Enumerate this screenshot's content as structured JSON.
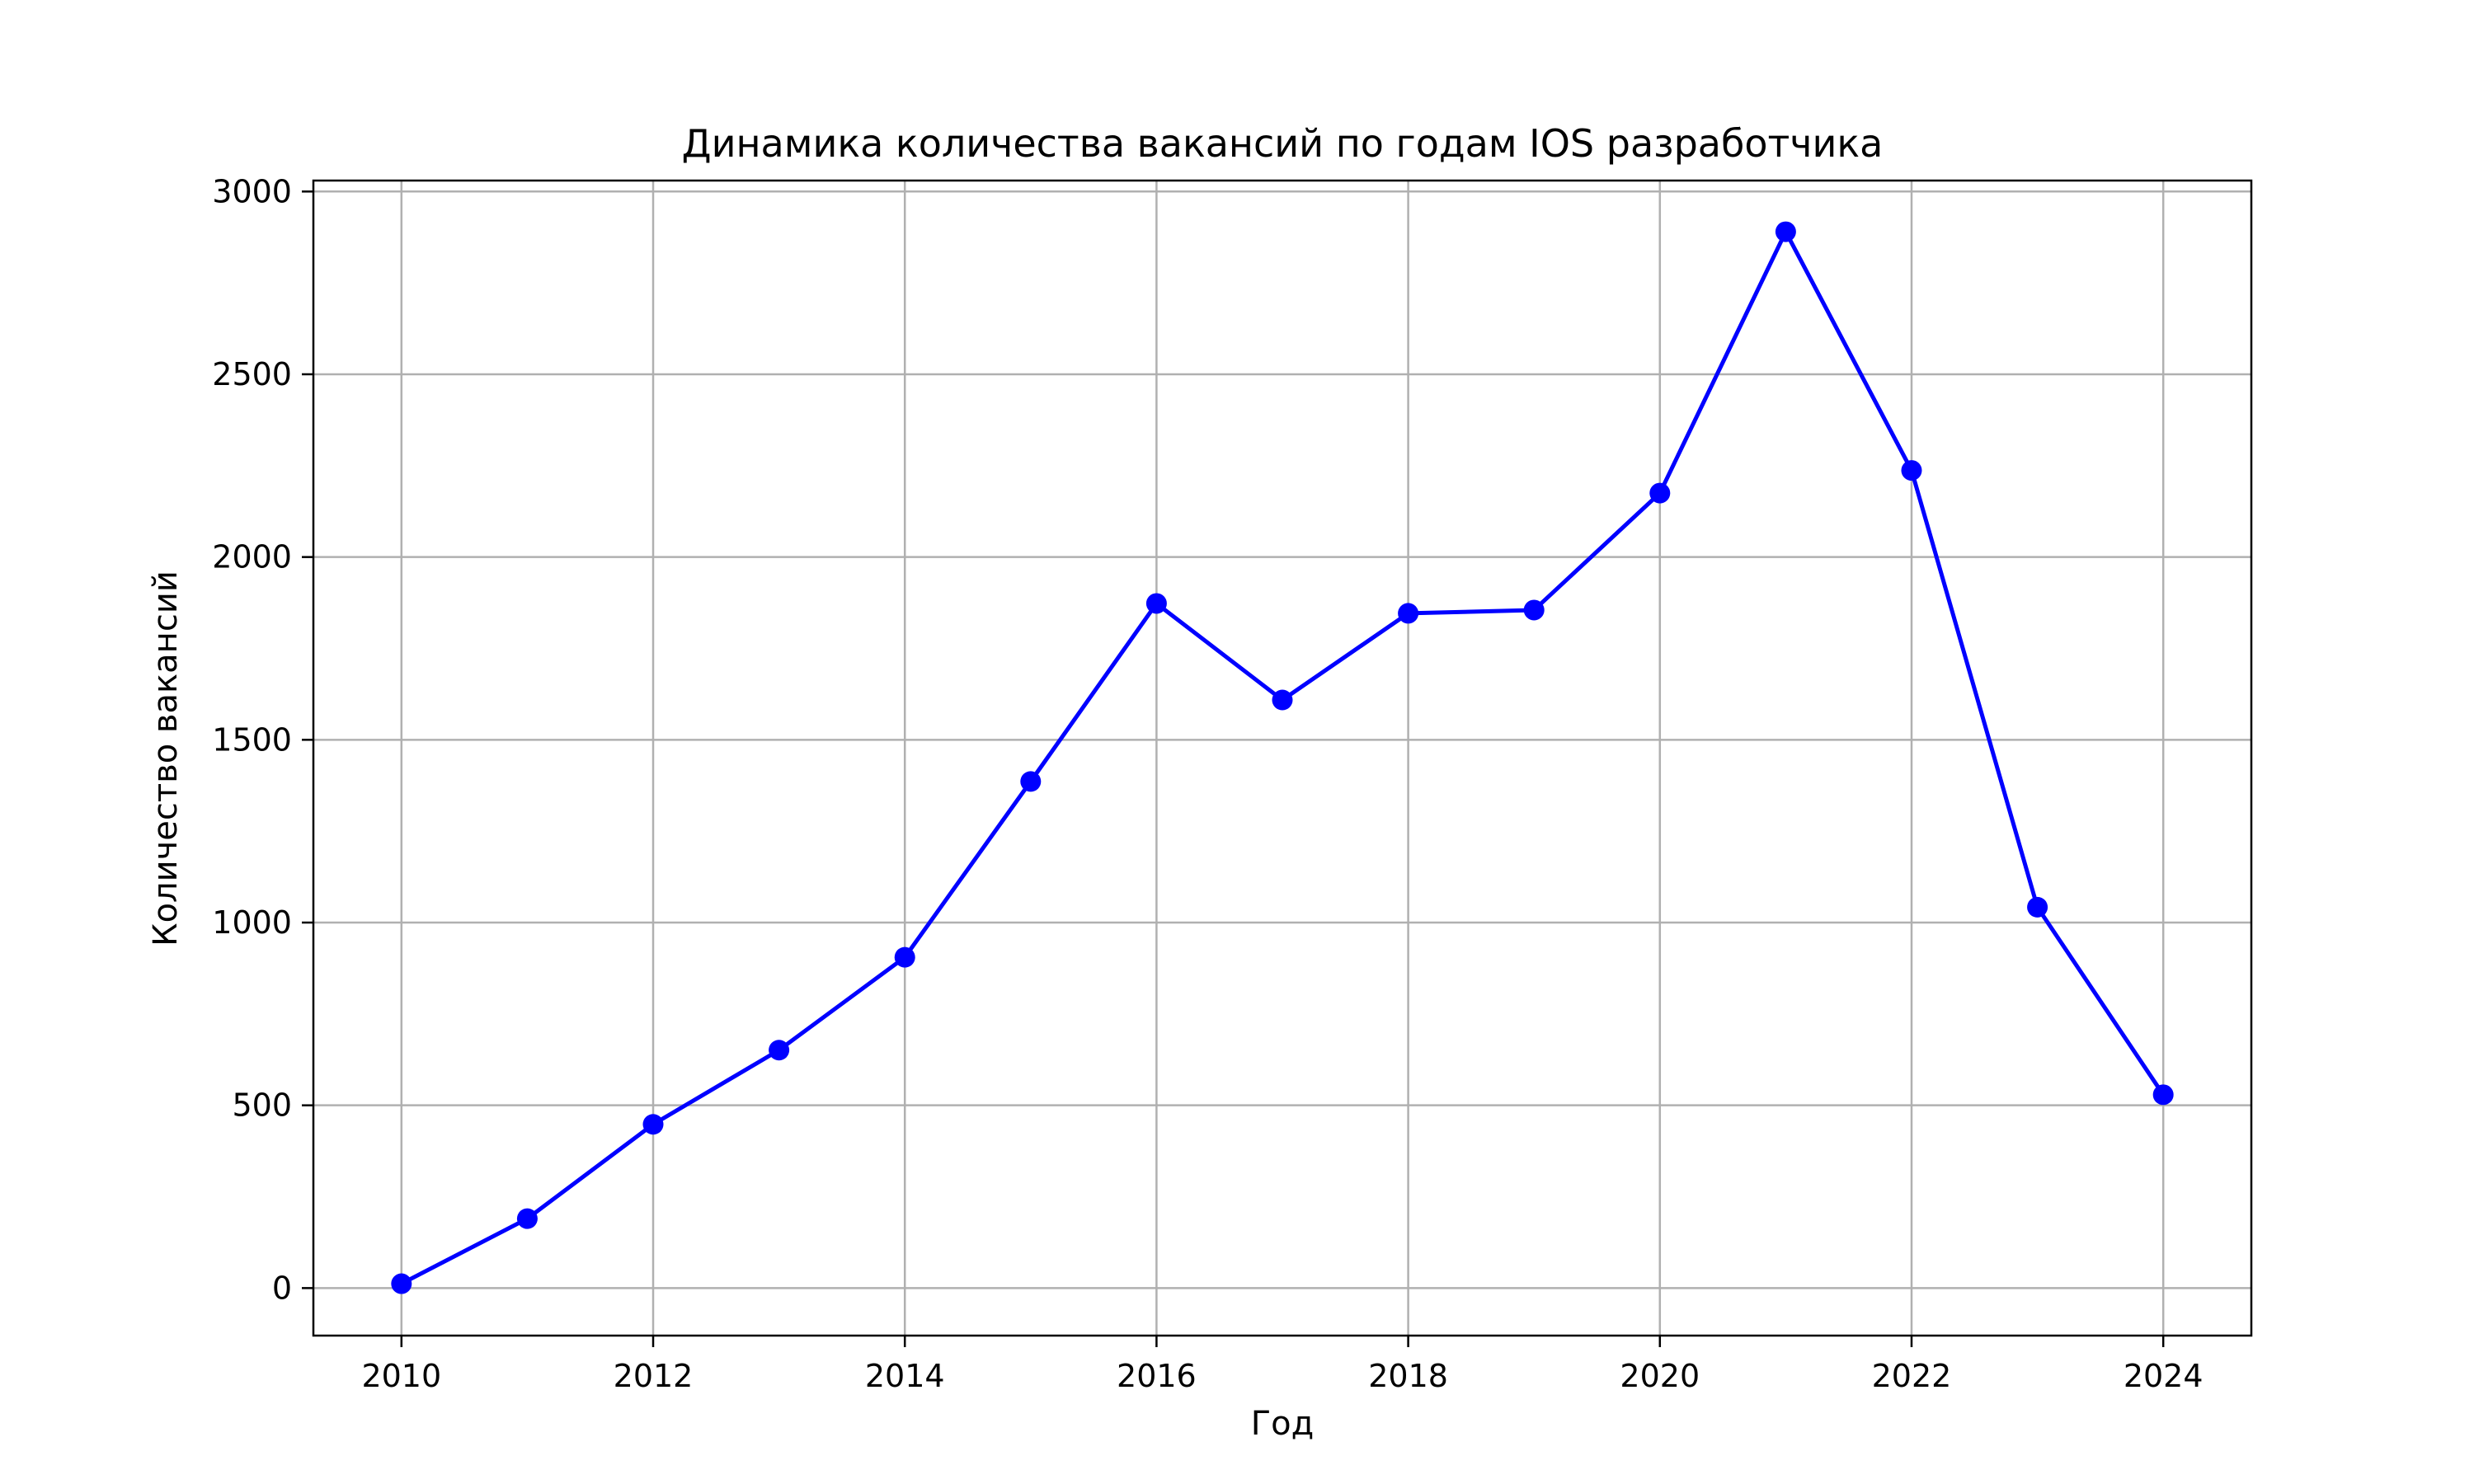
{
  "chart_data": {
    "type": "line",
    "title": "Динамика количества вакансий по годам IOS разработчика",
    "xlabel": "Год",
    "ylabel": "Количество вакансий",
    "x": [
      2010,
      2011,
      2012,
      2013,
      2014,
      2015,
      2016,
      2017,
      2018,
      2019,
      2020,
      2021,
      2022,
      2023,
      2024
    ],
    "series": [
      {
        "values": [
          12,
          190,
          448,
          651,
          905,
          1386,
          1873,
          1609,
          1846,
          1855,
          2175,
          2890,
          2237,
          1042,
          529
        ],
        "color": "#0000ff",
        "marker": "circle"
      }
    ],
    "xticks": [
      "2010",
      "2012",
      "2014",
      "2016",
      "2018",
      "2020",
      "2022",
      "2024"
    ],
    "yticks": [
      "0",
      "500",
      "1000",
      "1500",
      "2000",
      "2500",
      "3000"
    ],
    "xlim": [
      2009.3,
      2024.7
    ],
    "ylim": [
      -130,
      3030
    ],
    "grid": true,
    "legend": "none"
  }
}
